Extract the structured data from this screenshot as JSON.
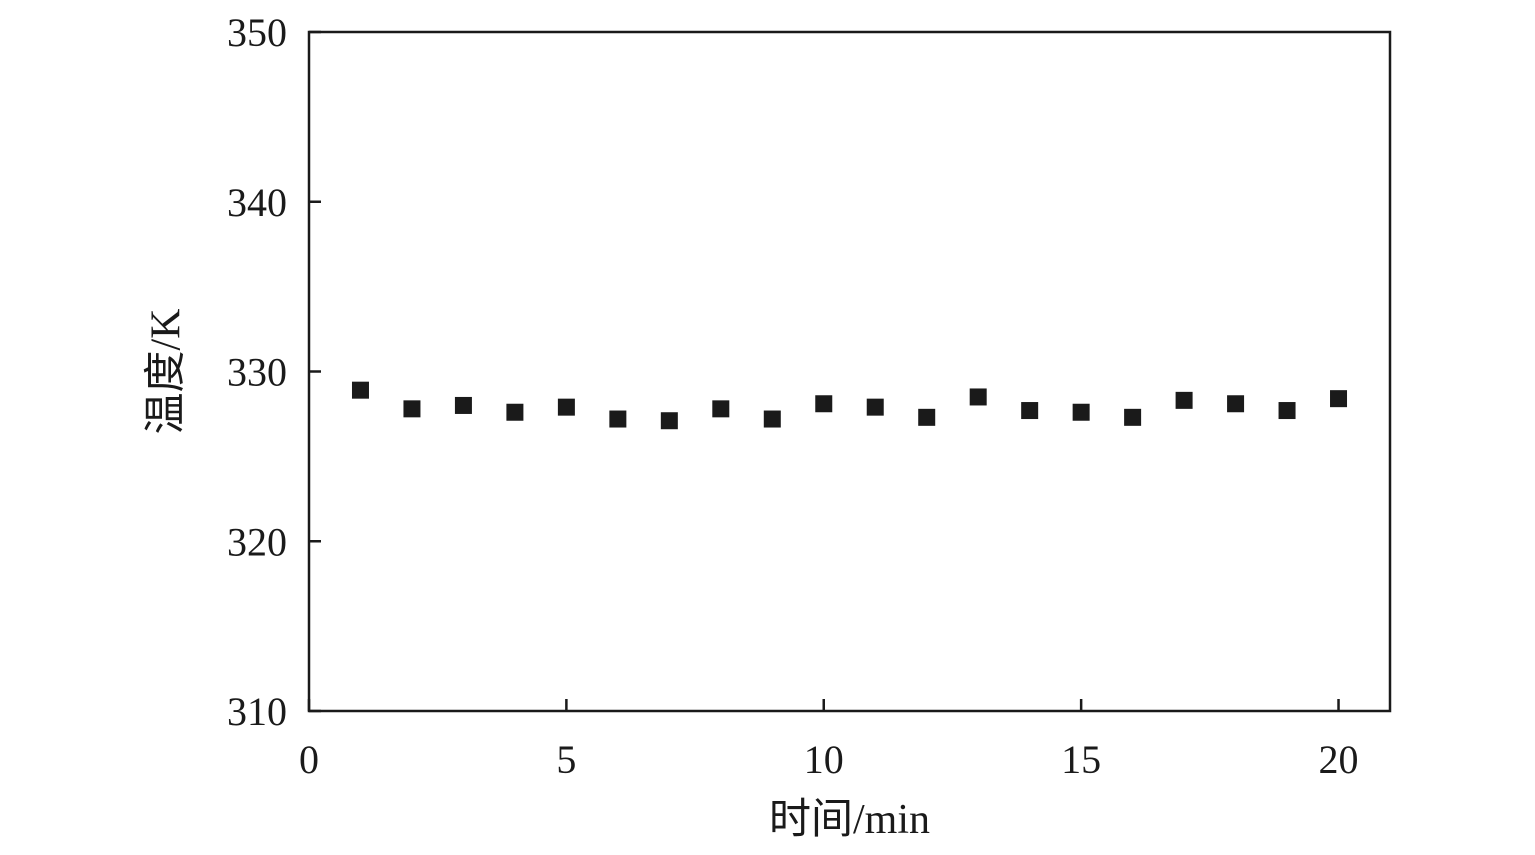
{
  "chart_data": {
    "type": "scatter",
    "title": "",
    "xlabel": "时间/min",
    "ylabel": "温度/K",
    "xlim": [
      0,
      21
    ],
    "ylim": [
      310,
      350
    ],
    "xticks": [
      0,
      5,
      10,
      15,
      20
    ],
    "yticks": [
      310,
      320,
      330,
      340,
      350
    ],
    "grid": false,
    "legend": "none",
    "marker": "square",
    "marker_color": "#1a1a1a",
    "series": [
      {
        "x": [
          1,
          2,
          3,
          4,
          5,
          6,
          7,
          8,
          9,
          10,
          11,
          12,
          13,
          14,
          15,
          16,
          17,
          18,
          19,
          20
        ],
        "y": [
          328.9,
          327.8,
          328.0,
          327.6,
          327.9,
          327.2,
          327.1,
          327.8,
          327.2,
          328.1,
          327.9,
          327.3,
          328.5,
          327.7,
          327.6,
          327.3,
          328.3,
          328.1,
          327.7,
          328.4
        ]
      }
    ]
  }
}
